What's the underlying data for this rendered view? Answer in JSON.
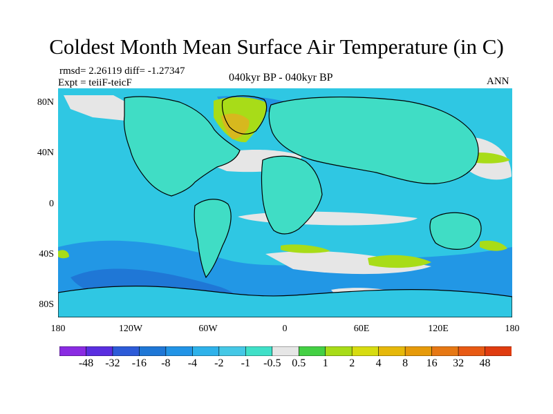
{
  "title": "Coldest Month Mean Surface Air Temperature (in C)",
  "stats": "rmsd= 2.26119 diff= -1.27347",
  "experiment": "Expt = teiiF-teicF",
  "period": "040kyr BP - 040kyr BP",
  "season": "ANN",
  "lat_labels": [
    "80N",
    "40N",
    "0",
    "40S",
    "80S"
  ],
  "lon_labels": [
    "180",
    "120W",
    "60W",
    "0",
    "60E",
    "120E",
    "180"
  ],
  "colorbar": {
    "labels": [
      "-48",
      "-32",
      "-16",
      "-8",
      "-4",
      "-2",
      "-1",
      "-0.5",
      "0.5",
      "1",
      "2",
      "4",
      "8",
      "16",
      "32",
      "48"
    ],
    "colors": [
      "#8a2be2",
      "#5a2ee0",
      "#2d5bd8",
      "#1f77d6",
      "#2294e6",
      "#2fb2ea",
      "#45c8e6",
      "#40e0c8",
      "#e6e6e6",
      "#44d044",
      "#a8dc18",
      "#d7dc10",
      "#e6b80a",
      "#e69a0a",
      "#e67814",
      "#e85a14",
      "#e03c10"
    ]
  },
  "map_colors": {
    "ocean_base": "#2fc7e3",
    "land_base": "#40ddc5",
    "deep_blue": "#2295e5",
    "neutral": "#e6e6e6",
    "green": "#a8dc18",
    "yellow_orange": "#d7b81e",
    "coast": "#000000"
  }
}
